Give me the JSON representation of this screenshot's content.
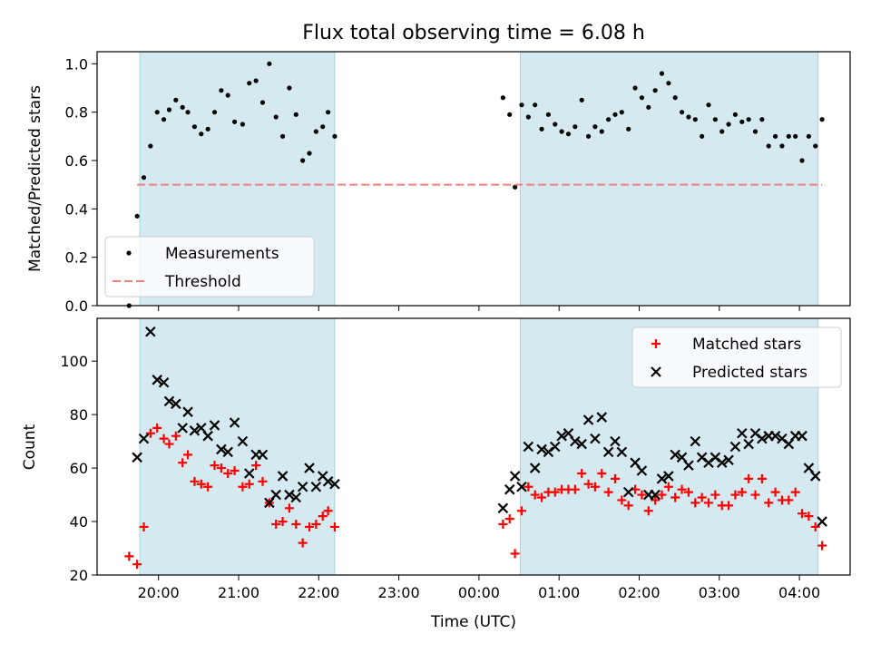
{
  "chart_data": [
    {
      "type": "scatter",
      "title": "Flux total observing time = 6.08 h",
      "xlabel": "",
      "ylabel": "Matched/Predicted stars",
      "xlim": [
        "19:14",
        "04:38"
      ],
      "ylim": [
        0.0,
        1.05
      ],
      "yticks": [
        "0.0",
        "0.2",
        "0.4",
        "0.6",
        "0.8",
        "1.0"
      ],
      "legend_position": "lower-left",
      "shaded_intervals": [
        [
          "19:46",
          "22:12"
        ],
        [
          "00:31",
          "04:14"
        ]
      ],
      "series": [
        {
          "name": "Measurements",
          "marker": "dot",
          "color": "#000000",
          "points": [
            [
              "19:38",
              0.0
            ],
            [
              "19:44",
              0.37
            ],
            [
              "19:49",
              0.53
            ],
            [
              "19:54",
              0.66
            ],
            [
              "19:59",
              0.8
            ],
            [
              "20:04",
              0.77
            ],
            [
              "20:08",
              0.81
            ],
            [
              "20:13",
              0.85
            ],
            [
              "20:18",
              0.82
            ],
            [
              "20:22",
              0.8
            ],
            [
              "20:27",
              0.74
            ],
            [
              "20:32",
              0.71
            ],
            [
              "20:37",
              0.73
            ],
            [
              "20:42",
              0.8
            ],
            [
              "20:47",
              0.89
            ],
            [
              "20:52",
              0.87
            ],
            [
              "20:57",
              0.76
            ],
            [
              "21:03",
              0.75
            ],
            [
              "21:08",
              0.92
            ],
            [
              "21:13",
              0.93
            ],
            [
              "21:18",
              0.84
            ],
            [
              "21:23",
              1.0
            ],
            [
              "21:28",
              0.78
            ],
            [
              "21:33",
              0.7
            ],
            [
              "21:38",
              0.9
            ],
            [
              "21:43",
              0.79
            ],
            [
              "21:48",
              0.6
            ],
            [
              "21:53",
              0.63
            ],
            [
              "21:58",
              0.72
            ],
            [
              "22:03",
              0.74
            ],
            [
              "22:07",
              0.8
            ],
            [
              "22:12",
              0.7
            ],
            [
              "00:18",
              0.86
            ],
            [
              "00:23",
              0.79
            ],
            [
              "00:27",
              0.49
            ],
            [
              "00:32",
              0.83
            ],
            [
              "00:37",
              0.78
            ],
            [
              "00:42",
              0.83
            ],
            [
              "00:47",
              0.73
            ],
            [
              "00:52",
              0.79
            ],
            [
              "00:57",
              0.75
            ],
            [
              "01:02",
              0.72
            ],
            [
              "01:07",
              0.71
            ],
            [
              "01:12",
              0.74
            ],
            [
              "01:17",
              0.85
            ],
            [
              "01:22",
              0.7
            ],
            [
              "01:27",
              0.74
            ],
            [
              "01:32",
              0.72
            ],
            [
              "01:37",
              0.77
            ],
            [
              "01:42",
              0.79
            ],
            [
              "01:47",
              0.8
            ],
            [
              "01:52",
              0.73
            ],
            [
              "01:57",
              0.9
            ],
            [
              "02:02",
              0.86
            ],
            [
              "02:07",
              0.82
            ],
            [
              "02:12",
              0.89
            ],
            [
              "02:17",
              0.96
            ],
            [
              "02:22",
              0.92
            ],
            [
              "02:27",
              0.86
            ],
            [
              "02:32",
              0.8
            ],
            [
              "02:37",
              0.78
            ],
            [
              "02:42",
              0.77
            ],
            [
              "02:47",
              0.7
            ],
            [
              "02:52",
              0.83
            ],
            [
              "02:57",
              0.77
            ],
            [
              "03:02",
              0.72
            ],
            [
              "03:07",
              0.75
            ],
            [
              "03:12",
              0.79
            ],
            [
              "03:17",
              0.76
            ],
            [
              "03:22",
              0.77
            ],
            [
              "03:27",
              0.72
            ],
            [
              "03:32",
              0.77
            ],
            [
              "03:37",
              0.66
            ],
            [
              "03:42",
              0.7
            ],
            [
              "03:47",
              0.66
            ],
            [
              "03:52",
              0.7
            ],
            [
              "03:57",
              0.7
            ],
            [
              "04:02",
              0.6
            ],
            [
              "04:07",
              0.7
            ],
            [
              "04:12",
              0.66
            ],
            [
              "04:17",
              0.77
            ]
          ]
        },
        {
          "name": "Threshold",
          "marker": "dashed-line",
          "color": "#f08080",
          "points": [
            [
              "19:44",
              0.5
            ],
            [
              "04:17",
              0.5
            ]
          ]
        }
      ]
    },
    {
      "type": "scatter",
      "title": "",
      "xlabel": "Time (UTC)",
      "ylabel": "Count",
      "xlim": [
        "19:14",
        "04:38"
      ],
      "ylim": [
        20,
        116
      ],
      "yticks": [
        "20",
        "40",
        "60",
        "80",
        "100"
      ],
      "xticks": [
        "20:00",
        "21:00",
        "22:00",
        "23:00",
        "00:00",
        "01:00",
        "02:00",
        "03:00",
        "04:00"
      ],
      "legend_position": "upper-right",
      "shaded_intervals": [
        [
          "19:46",
          "22:12"
        ],
        [
          "00:31",
          "04:14"
        ]
      ],
      "series": [
        {
          "name": "Matched stars",
          "marker": "plus",
          "color": "#ff0000",
          "points": [
            [
              "19:38",
              27
            ],
            [
              "19:44",
              24
            ],
            [
              "19:49",
              38
            ],
            [
              "19:54",
              73
            ],
            [
              "19:59",
              75
            ],
            [
              "20:04",
              71
            ],
            [
              "20:08",
              69
            ],
            [
              "20:13",
              72
            ],
            [
              "20:18",
              62
            ],
            [
              "20:22",
              65
            ],
            [
              "20:27",
              55
            ],
            [
              "20:32",
              54
            ],
            [
              "20:37",
              53
            ],
            [
              "20:42",
              61
            ],
            [
              "20:47",
              60
            ],
            [
              "20:52",
              58
            ],
            [
              "20:57",
              59
            ],
            [
              "21:03",
              53
            ],
            [
              "21:08",
              54
            ],
            [
              "21:13",
              61
            ],
            [
              "21:18",
              55
            ],
            [
              "21:23",
              47
            ],
            [
              "21:28",
              39
            ],
            [
              "21:33",
              40
            ],
            [
              "21:38",
              45
            ],
            [
              "21:43",
              39
            ],
            [
              "21:48",
              32
            ],
            [
              "21:53",
              38
            ],
            [
              "21:58",
              39
            ],
            [
              "22:03",
              42
            ],
            [
              "22:07",
              44
            ],
            [
              "22:12",
              38
            ],
            [
              "00:18",
              39
            ],
            [
              "00:23",
              41
            ],
            [
              "00:27",
              28
            ],
            [
              "00:32",
              44
            ],
            [
              "00:37",
              53
            ],
            [
              "00:42",
              50
            ],
            [
              "00:47",
              49
            ],
            [
              "00:52",
              51
            ],
            [
              "00:57",
              51
            ],
            [
              "01:02",
              52
            ],
            [
              "01:07",
              52
            ],
            [
              "01:12",
              52
            ],
            [
              "01:17",
              58
            ],
            [
              "01:22",
              54
            ],
            [
              "01:27",
              53
            ],
            [
              "01:32",
              58
            ],
            [
              "01:37",
              51
            ],
            [
              "01:42",
              56
            ],
            [
              "01:47",
              48
            ],
            [
              "01:52",
              46
            ],
            [
              "01:57",
              52
            ],
            [
              "02:02",
              50
            ],
            [
              "02:07",
              44
            ],
            [
              "02:12",
              48
            ],
            [
              "02:17",
              50
            ],
            [
              "02:22",
              53
            ],
            [
              "02:27",
              49
            ],
            [
              "02:32",
              52
            ],
            [
              "02:37",
              51
            ],
            [
              "02:42",
              47
            ],
            [
              "02:47",
              49
            ],
            [
              "02:52",
              47
            ],
            [
              "02:57",
              50
            ],
            [
              "03:02",
              46
            ],
            [
              "03:07",
              46
            ],
            [
              "03:12",
              50
            ],
            [
              "03:17",
              51
            ],
            [
              "03:22",
              56
            ],
            [
              "03:27",
              50
            ],
            [
              "03:32",
              56
            ],
            [
              "03:37",
              47
            ],
            [
              "03:42",
              51
            ],
            [
              "03:47",
              48
            ],
            [
              "03:52",
              48
            ],
            [
              "03:57",
              51
            ],
            [
              "04:02",
              43
            ],
            [
              "04:07",
              42
            ],
            [
              "04:12",
              38
            ],
            [
              "04:17",
              31
            ]
          ]
        },
        {
          "name": "Predicted stars",
          "marker": "x",
          "color": "#000000",
          "points": [
            [
              "19:44",
              64
            ],
            [
              "19:49",
              71
            ],
            [
              "19:54",
              111
            ],
            [
              "19:59",
              93
            ],
            [
              "20:04",
              92
            ],
            [
              "20:08",
              85
            ],
            [
              "20:13",
              84
            ],
            [
              "20:18",
              75
            ],
            [
              "20:22",
              81
            ],
            [
              "20:27",
              74
            ],
            [
              "20:32",
              75
            ],
            [
              "20:37",
              72
            ],
            [
              "20:42",
              76
            ],
            [
              "20:47",
              67
            ],
            [
              "20:52",
              66
            ],
            [
              "20:57",
              77
            ],
            [
              "21:03",
              70
            ],
            [
              "21:08",
              58
            ],
            [
              "21:13",
              65
            ],
            [
              "21:18",
              65
            ],
            [
              "21:23",
              47
            ],
            [
              "21:28",
              50
            ],
            [
              "21:33",
              57
            ],
            [
              "21:38",
              50
            ],
            [
              "21:43",
              49
            ],
            [
              "21:48",
              53
            ],
            [
              "21:53",
              60
            ],
            [
              "21:58",
              53
            ],
            [
              "22:03",
              57
            ],
            [
              "22:07",
              55
            ],
            [
              "22:12",
              54
            ],
            [
              "00:18",
              45
            ],
            [
              "00:23",
              52
            ],
            [
              "00:27",
              57
            ],
            [
              "00:32",
              53
            ],
            [
              "00:37",
              68
            ],
            [
              "00:42",
              60
            ],
            [
              "00:47",
              67
            ],
            [
              "00:52",
              66
            ],
            [
              "00:57",
              68
            ],
            [
              "01:02",
              72
            ],
            [
              "01:07",
              73
            ],
            [
              "01:12",
              70
            ],
            [
              "01:17",
              69
            ],
            [
              "01:22",
              78
            ],
            [
              "01:27",
              71
            ],
            [
              "01:32",
              79
            ],
            [
              "01:37",
              66
            ],
            [
              "01:42",
              70
            ],
            [
              "01:47",
              66
            ],
            [
              "01:52",
              51
            ],
            [
              "01:57",
              62
            ],
            [
              "02:02",
              59
            ],
            [
              "02:07",
              50
            ],
            [
              "02:12",
              50
            ],
            [
              "02:17",
              56
            ],
            [
              "02:22",
              57
            ],
            [
              "02:27",
              65
            ],
            [
              "02:32",
              64
            ],
            [
              "02:37",
              61
            ],
            [
              "02:42",
              70
            ],
            [
              "02:47",
              64
            ],
            [
              "02:52",
              62
            ],
            [
              "02:57",
              64
            ],
            [
              "03:02",
              62
            ],
            [
              "03:07",
              63
            ],
            [
              "03:12",
              68
            ],
            [
              "03:17",
              73
            ],
            [
              "03:22",
              69
            ],
            [
              "03:27",
              73
            ],
            [
              "03:32",
              71
            ],
            [
              "03:37",
              72
            ],
            [
              "03:42",
              72
            ],
            [
              "03:47",
              71
            ],
            [
              "03:52",
              69
            ],
            [
              "03:57",
              72
            ],
            [
              "04:02",
              72
            ],
            [
              "04:07",
              60
            ],
            [
              "04:12",
              57
            ],
            [
              "04:17",
              40
            ]
          ]
        }
      ]
    }
  ]
}
